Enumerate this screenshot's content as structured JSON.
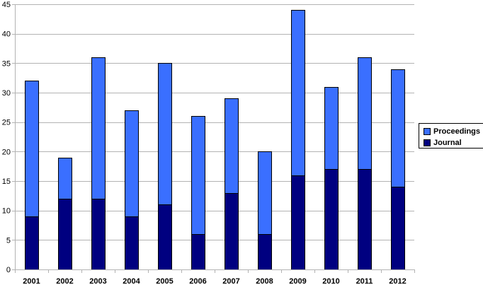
{
  "chart_data": {
    "type": "bar",
    "stacked": true,
    "categories": [
      "2001",
      "2002",
      "2003",
      "2004",
      "2005",
      "2006",
      "2007",
      "2008",
      "2009",
      "2010",
      "2011",
      "2012"
    ],
    "series": [
      {
        "name": "Journal",
        "color": "#000080",
        "values": [
          9,
          12,
          12,
          9,
          11,
          6,
          13,
          6,
          16,
          17,
          17,
          14
        ]
      },
      {
        "name": "Proceedings",
        "color": "#3a6fff",
        "values": [
          23,
          7,
          24,
          18,
          24,
          20,
          16,
          14,
          28,
          14,
          19,
          20
        ]
      }
    ],
    "yticks": [
      "0",
      "5",
      "10",
      "15",
      "20",
      "25",
      "30",
      "35",
      "40",
      "45"
    ],
    "ylim": [
      0,
      45
    ],
    "grid": true,
    "legend_position": "right",
    "legend_order": [
      "Proceedings",
      "Journal"
    ]
  }
}
